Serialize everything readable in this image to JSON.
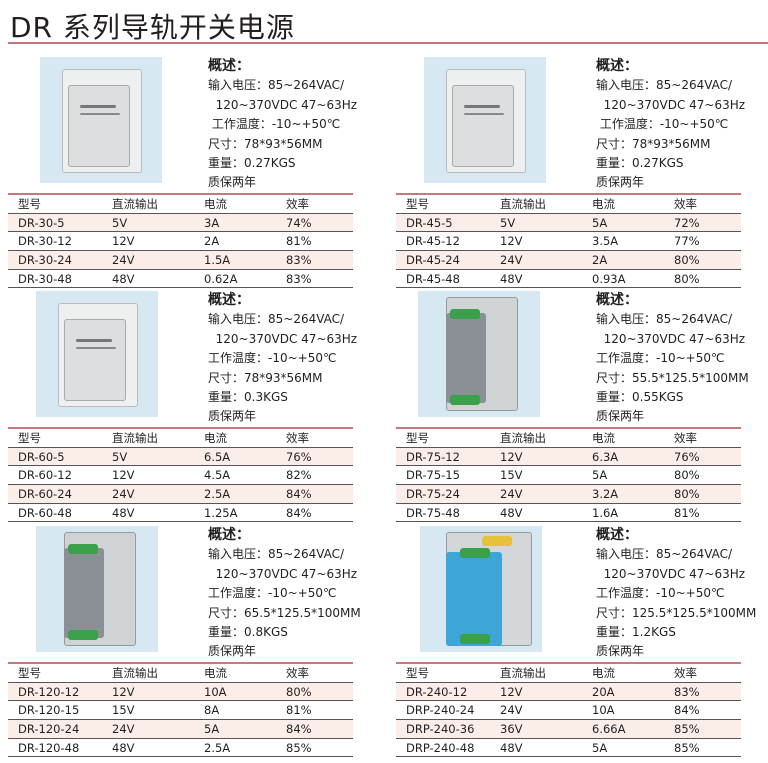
{
  "title": "DR 系列导轨开关电源",
  "table_headers": [
    "型号",
    "直流输出",
    "电流",
    "效率"
  ],
  "products": [
    {
      "desc": [
        "概述：",
        "输入电压：85~264VAC/",
        "  120~370VDC 47~63Hz",
        " 工作温度：-10~+50℃",
        "尺寸：78*93*56MM",
        "重量：0.27KGS",
        "质保两年"
      ],
      "rows": [
        [
          "DR-30-5",
          "5V",
          "3A",
          "74%"
        ],
        [
          "DR-30-12",
          "12V",
          "2A",
          "81%"
        ],
        [
          "DR-30-24",
          "24V",
          "1.5A",
          "83%"
        ],
        [
          "DR-30-48",
          "48V",
          "0.62A",
          "83%"
        ]
      ],
      "style": "small"
    },
    {
      "desc": [
        "概述：",
        "输入电压：85~264VAC/",
        "  120~370VDC 47~63Hz",
        " 工作温度：-10~+50℃",
        "尺寸：78*93*56MM",
        "重量：0.27KGS",
        "质保两年"
      ],
      "rows": [
        [
          "DR-45-5",
          "5V",
          "5A",
          "72%"
        ],
        [
          "DR-45-12",
          "12V",
          "3.5A",
          "77%"
        ],
        [
          "DR-45-24",
          "24V",
          "2A",
          "80%"
        ],
        [
          "DR-45-48",
          "48V",
          "0.93A",
          "80%"
        ]
      ],
      "style": "small"
    },
    {
      "desc": [
        "概述：",
        "输入电压：85~264VAC/",
        "  120~370VDC 47~63Hz",
        "工作温度：-10~+50℃",
        "尺寸：78*93*56MM",
        "重量：0.3KGS",
        "质保两年"
      ],
      "rows": [
        [
          "DR-60-5",
          "5V",
          "6.5A",
          "76%"
        ],
        [
          "DR-60-12",
          "12V",
          "4.5A",
          "82%"
        ],
        [
          "DR-60-24",
          "24V",
          "2.5A",
          "84%"
        ],
        [
          "DR-60-48",
          "48V",
          "1.25A",
          "84%"
        ]
      ],
      "style": "small"
    },
    {
      "desc": [
        "概述：",
        "输入电压：85~264VAC/",
        "  120~370VDC 47~63Hz",
        "工作温度：-10~+50℃",
        "尺寸：55.5*125.5*100MM",
        "重量：0.55KGS",
        "质保两年"
      ],
      "rows": [
        [
          "DR-75-12",
          "12V",
          "6.3A",
          "76%"
        ],
        [
          "DR-75-15",
          "15V",
          "5A",
          "80%"
        ],
        [
          "DR-75-24",
          "24V",
          "3.2A",
          "80%"
        ],
        [
          "DR-75-48",
          "48V",
          "1.6A",
          "81%"
        ]
      ],
      "style": "gray"
    },
    {
      "desc": [
        "概述：",
        "输入电压：85~264VAC/",
        "  120~370VDC 47~63Hz",
        "工作温度：-10~+50℃",
        "尺寸：65.5*125.5*100MM",
        "重量：0.8KGS",
        "质保两年"
      ],
      "rows": [
        [
          "DR-120-12",
          "12V",
          "10A",
          "80%"
        ],
        [
          "DR-120-15",
          "15V",
          "8A",
          "81%"
        ],
        [
          "DR-120-24",
          "24V",
          "5A",
          "84%"
        ],
        [
          "DR-120-48",
          "48V",
          "2.5A",
          "85%"
        ]
      ],
      "style": "gray"
    },
    {
      "desc": [
        "概述：",
        "输入电压：85~264VAC/",
        "  120~370VDC 47~63Hz",
        "工作温度：-10~+50℃",
        "尺寸：125.5*125.5*100MM",
        "重量：1.2KGS",
        "质保两年"
      ],
      "rows": [
        [
          "DR-240-12",
          "12V",
          "20A",
          "83%"
        ],
        [
          "DRP-240-24",
          "24V",
          "10A",
          "84%"
        ],
        [
          "DRP-240-36",
          "36V",
          "6.66A",
          "85%"
        ],
        [
          "DRP-240-48",
          "48V",
          "5A",
          "85%"
        ]
      ],
      "style": "blue"
    }
  ]
}
